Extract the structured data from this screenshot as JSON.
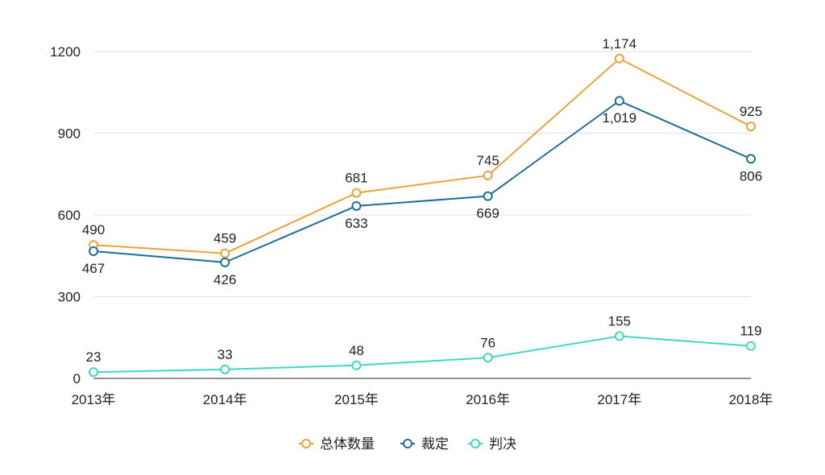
{
  "chart_data": {
    "type": "line",
    "title": "",
    "xlabel": "",
    "ylabel": "",
    "categories": [
      "2013年",
      "2014年",
      "2015年",
      "2016年",
      "2017年",
      "2018年"
    ],
    "ylim": [
      0,
      1200
    ],
    "yticks": [
      0,
      300,
      600,
      900,
      1200
    ],
    "grid": true,
    "legend_position": "bottom-center",
    "series": [
      {
        "name": "总体数量",
        "color": "#E8A33D",
        "values": [
          490,
          459,
          681,
          745,
          1174,
          925
        ],
        "labels": [
          "490",
          "459",
          "681",
          "745",
          "1,174",
          "925"
        ],
        "label_side": "above"
      },
      {
        "name": "裁定",
        "color": "#1F6E97",
        "values": [
          467,
          426,
          633,
          669,
          1019,
          806
        ],
        "labels": [
          "467",
          "426",
          "633",
          "669",
          "1,019",
          "806"
        ],
        "label_side": "below"
      },
      {
        "name": "判决",
        "color": "#3FD9C2",
        "values": [
          23,
          33,
          48,
          76,
          155,
          119
        ],
        "labels": [
          "23",
          "33",
          "48",
          "76",
          "155",
          "119"
        ],
        "label_side": "above"
      }
    ]
  }
}
